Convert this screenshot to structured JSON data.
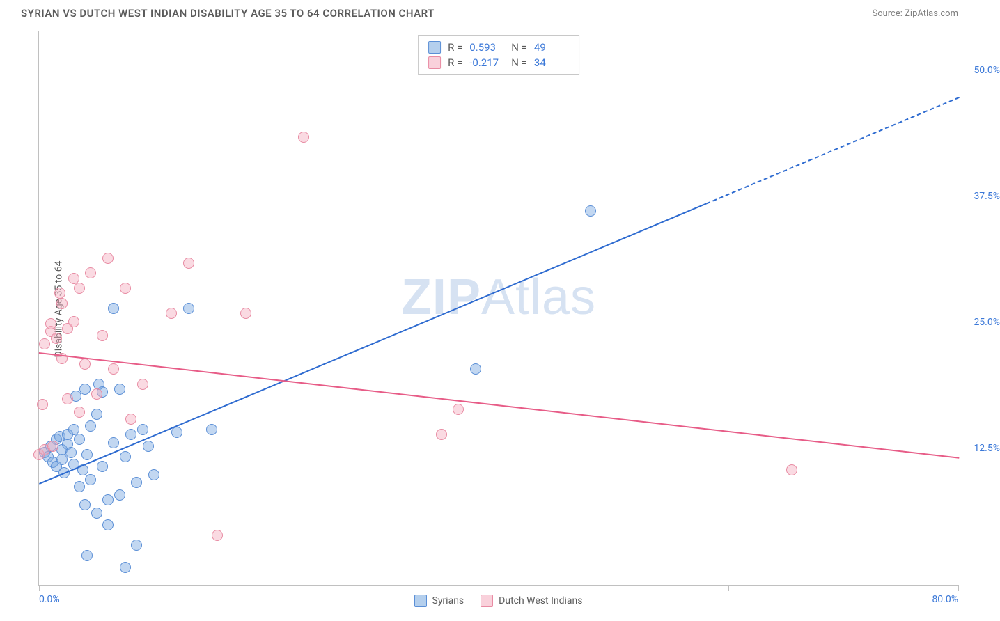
{
  "header": {
    "title": "SYRIAN VS DUTCH WEST INDIAN DISABILITY AGE 35 TO 64 CORRELATION CHART",
    "source": "Source: ZipAtlas.com"
  },
  "chart": {
    "type": "scatter",
    "y_axis_label": "Disability Age 35 to 64",
    "xlim": [
      0,
      80
    ],
    "ylim": [
      0,
      55
    ],
    "y_gridlines": [
      12.5,
      25.0,
      37.5,
      50.0
    ],
    "y_tick_labels": [
      "12.5%",
      "25.0%",
      "37.5%",
      "50.0%"
    ],
    "x_ticks": [
      0,
      20,
      40,
      60,
      80
    ],
    "x_tick_labels": {
      "first": "0.0%",
      "last": "80.0%"
    },
    "background_color": "#ffffff",
    "grid_color": "#dcdcdc",
    "axis_color": "#c0c0c0",
    "watermark": {
      "bold": "ZIP",
      "light": "Atlas"
    },
    "series": [
      {
        "name": "Syrians",
        "color_fill": "rgba(119,167,223,0.45)",
        "color_stroke": "#5b8fd6",
        "trend_color": "#2e6bd0",
        "R": "0.593",
        "N": "49",
        "trend": {
          "x1": 0,
          "y1": 10.2,
          "x2": 80,
          "y2": 48.5,
          "solid_until_x": 58
        },
        "points": [
          [
            0.5,
            13.2
          ],
          [
            0.8,
            12.8
          ],
          [
            1.0,
            13.8
          ],
          [
            1.2,
            12.2
          ],
          [
            1.5,
            14.5
          ],
          [
            1.5,
            11.8
          ],
          [
            1.8,
            14.8
          ],
          [
            2.0,
            12.5
          ],
          [
            2.0,
            13.5
          ],
          [
            2.2,
            11.2
          ],
          [
            2.5,
            14.0
          ],
          [
            2.5,
            15.0
          ],
          [
            2.8,
            13.2
          ],
          [
            3.0,
            12.0
          ],
          [
            3.0,
            15.5
          ],
          [
            3.2,
            18.8
          ],
          [
            3.5,
            14.5
          ],
          [
            3.5,
            9.8
          ],
          [
            3.8,
            11.5
          ],
          [
            4.0,
            8.0
          ],
          [
            4.0,
            19.5
          ],
          [
            4.2,
            13.0
          ],
          [
            4.5,
            10.5
          ],
          [
            4.5,
            15.8
          ],
          [
            5.0,
            17.0
          ],
          [
            5.0,
            7.2
          ],
          [
            5.2,
            20.0
          ],
          [
            5.5,
            11.8
          ],
          [
            5.5,
            19.2
          ],
          [
            6.0,
            8.5
          ],
          [
            6.0,
            6.0
          ],
          [
            6.5,
            14.2
          ],
          [
            6.5,
            27.5
          ],
          [
            7.0,
            9.0
          ],
          [
            7.0,
            19.5
          ],
          [
            7.5,
            12.8
          ],
          [
            7.5,
            1.8
          ],
          [
            8.0,
            15.0
          ],
          [
            8.5,
            10.2
          ],
          [
            8.5,
            4.0
          ],
          [
            9.0,
            15.5
          ],
          [
            9.5,
            13.8
          ],
          [
            10.0,
            11.0
          ],
          [
            12.0,
            15.2
          ],
          [
            13.0,
            27.5
          ],
          [
            15.0,
            15.5
          ],
          [
            38.0,
            21.5
          ],
          [
            48.0,
            37.2
          ],
          [
            4.2,
            3.0
          ]
        ]
      },
      {
        "name": "Dutch West Indians",
        "color_fill": "rgba(244,172,190,0.45)",
        "color_stroke": "#e88ba3",
        "trend_color": "#e75c87",
        "R": "-0.217",
        "N": "34",
        "trend": {
          "x1": 0,
          "y1": 23.2,
          "x2": 80,
          "y2": 12.8,
          "solid_until_x": 80
        },
        "points": [
          [
            0.0,
            13.0
          ],
          [
            0.3,
            18.0
          ],
          [
            0.5,
            13.5
          ],
          [
            0.5,
            24.0
          ],
          [
            1.0,
            25.2
          ],
          [
            1.0,
            26.0
          ],
          [
            1.2,
            13.8
          ],
          [
            1.5,
            24.5
          ],
          [
            1.8,
            29.0
          ],
          [
            2.0,
            22.5
          ],
          [
            2.0,
            28.0
          ],
          [
            2.5,
            18.5
          ],
          [
            2.5,
            25.5
          ],
          [
            3.0,
            26.2
          ],
          [
            3.0,
            30.5
          ],
          [
            3.5,
            29.5
          ],
          [
            3.5,
            17.2
          ],
          [
            4.0,
            22.0
          ],
          [
            4.5,
            31.0
          ],
          [
            5.0,
            19.0
          ],
          [
            5.5,
            24.8
          ],
          [
            6.0,
            32.5
          ],
          [
            6.5,
            21.5
          ],
          [
            7.5,
            29.5
          ],
          [
            8.0,
            16.5
          ],
          [
            9.0,
            20.0
          ],
          [
            11.5,
            27.0
          ],
          [
            13.0,
            32.0
          ],
          [
            15.5,
            5.0
          ],
          [
            18.0,
            27.0
          ],
          [
            23.0,
            44.5
          ],
          [
            35.0,
            15.0
          ],
          [
            36.5,
            17.5
          ],
          [
            65.5,
            11.5
          ]
        ]
      }
    ],
    "legend": {
      "blue_label": "Syrians",
      "pink_label": "Dutch West Indians"
    }
  }
}
